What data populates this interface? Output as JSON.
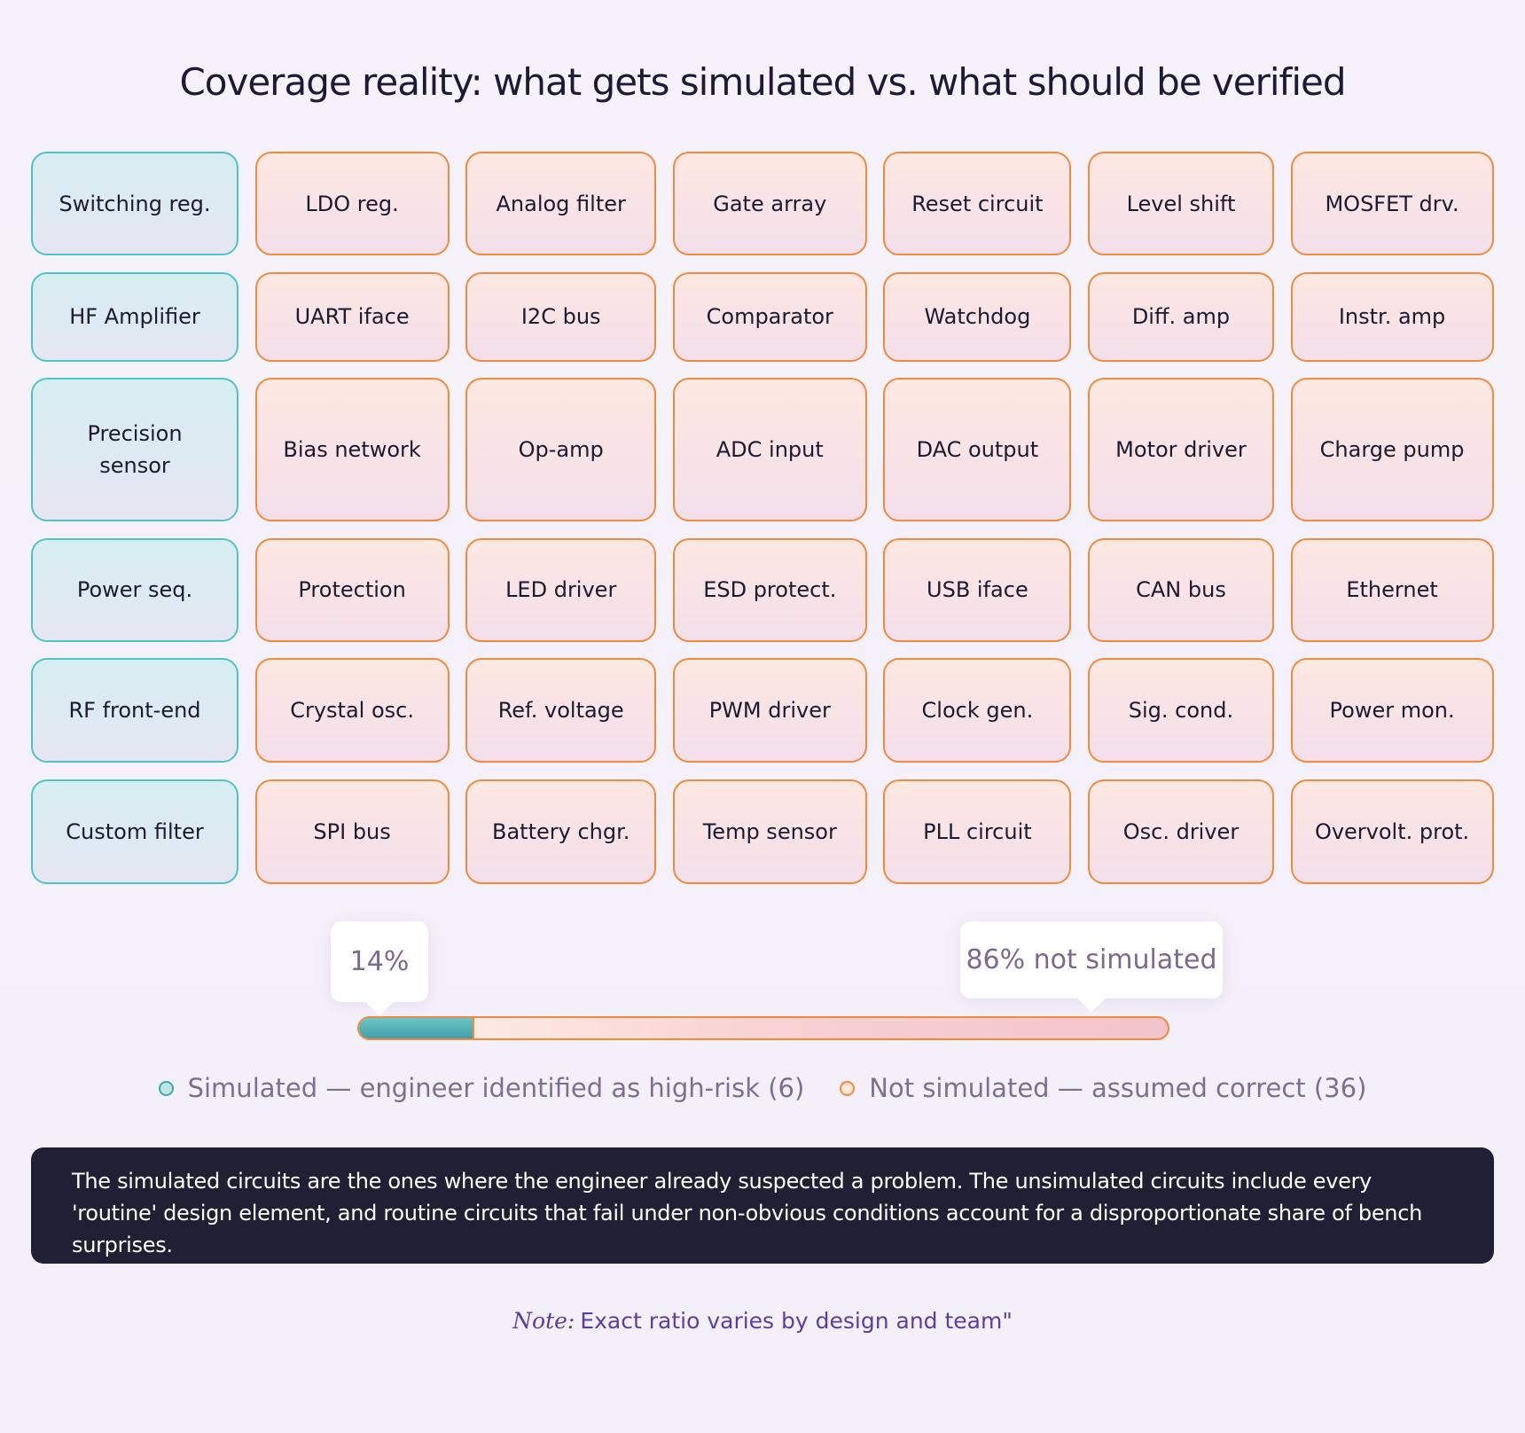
{
  "header": {
    "title": "Coverage reality: what gets simulated vs. what should be verified"
  },
  "grid": {
    "rows": [
      [
        "Switching reg.",
        "LDO reg.",
        "Analog filter",
        "Gate array",
        "Reset circuit",
        "Level shift",
        "MOSFET drv."
      ],
      [
        "HF Amplifier",
        "UART iface",
        "I2C bus",
        "Comparator",
        "Watchdog",
        "Diff. amp",
        "Instr. amp"
      ],
      [
        "Precision sensor",
        "Bias network",
        "Op-amp",
        "ADC input",
        "DAC output",
        "Motor driver",
        "Charge pump"
      ],
      [
        "Power seq.",
        "Protection",
        "LED driver",
        "ESD protect.",
        "USB iface",
        "CAN bus",
        "Ethernet"
      ],
      [
        "RF front-end",
        "Crystal osc.",
        "Ref. voltage",
        "PWM driver",
        "Clock gen.",
        "Sig. cond.",
        "Power mon."
      ],
      [
        "Custom filter",
        "SPI bus",
        "Battery chgr.",
        "Temp sensor",
        "PLL circuit",
        "Osc. driver",
        "Overvolt. prot."
      ]
    ]
  },
  "progress": {
    "simulated": {
      "value": 14,
      "label": "14%"
    },
    "not_simulated": {
      "value": 86,
      "label": "86% not simulated"
    }
  },
  "legend": {
    "simulated": "Simulated — engineer identified as high-risk (6)",
    "not_simulated": "Not simulated — assumed correct (36)"
  },
  "callout": "The simulated circuits are the ones where the engineer already suspected a problem. The unsimulated circuits include every 'routine' design element, and routine circuits that fail under non-obvious conditions account for a disproportionate share of bench surprises.",
  "note": {
    "prefix": "Note:",
    "text": "Exact ratio varies by design and team\""
  }
}
